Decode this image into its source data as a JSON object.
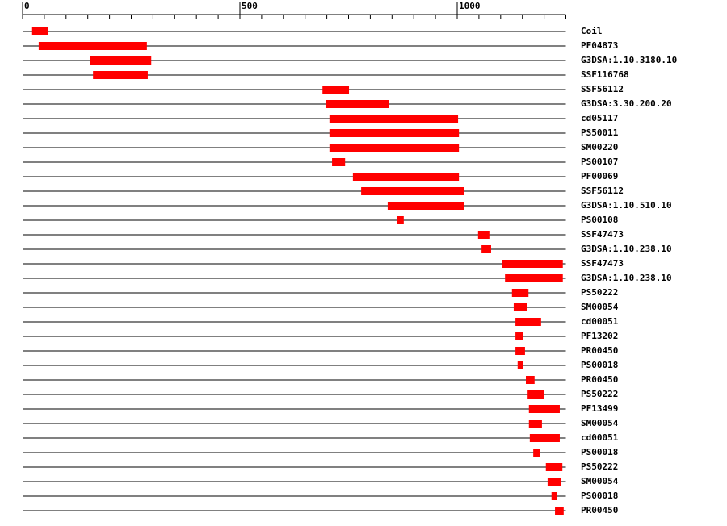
{
  "chart_data": {
    "type": "range",
    "categories": [
      "Coil",
      "PF04873",
      "G3DSA:1.10.3180.10",
      "SSF116768",
      "SSF56112",
      "G3DSA:3.30.200.20",
      "cd05117",
      "PS50011",
      "SM00220",
      "PS00107",
      "PF00069",
      "SSF56112",
      "G3DSA:1.10.510.10",
      "PS00108",
      "SSF47473",
      "G3DSA:1.10.238.10",
      "SSF47473",
      "G3DSA:1.10.238.10",
      "PS50222",
      "SM00054",
      "cd00051",
      "PF13202",
      "PR00450",
      "PS00018",
      "PR00450",
      "PS50222",
      "PF13499",
      "SM00054",
      "cd00051",
      "PS00018",
      "PS50222",
      "SM00054",
      "PS00018",
      "PR00450"
    ],
    "start": [
      20,
      37,
      156,
      162,
      690,
      697,
      706,
      706,
      706,
      712,
      760,
      779,
      840,
      862,
      1048,
      1056,
      1104,
      1110,
      1126,
      1130,
      1134,
      1134,
      1134,
      1139,
      1158,
      1162,
      1165,
      1165,
      1167,
      1175,
      1204,
      1208,
      1217,
      1225
    ],
    "end": [
      58,
      286,
      296,
      288,
      751,
      842,
      1002,
      1004,
      1004,
      742,
      1004,
      1015,
      1015,
      877,
      1074,
      1078,
      1243,
      1243,
      1164,
      1160,
      1193,
      1152,
      1156,
      1152,
      1178,
      1199,
      1236,
      1195,
      1236,
      1190,
      1242,
      1238,
      1230,
      1245
    ],
    "color": "#ff0000",
    "xlim": [
      0,
      1250
    ],
    "xticks": [
      0,
      500,
      1000
    ],
    "minor_xticks": [
      50,
      100,
      150,
      200,
      250,
      300,
      350,
      400,
      450,
      550,
      600,
      650,
      700,
      750,
      800,
      850,
      900,
      950,
      1050,
      1100,
      1150,
      1200,
      1250
    ]
  }
}
